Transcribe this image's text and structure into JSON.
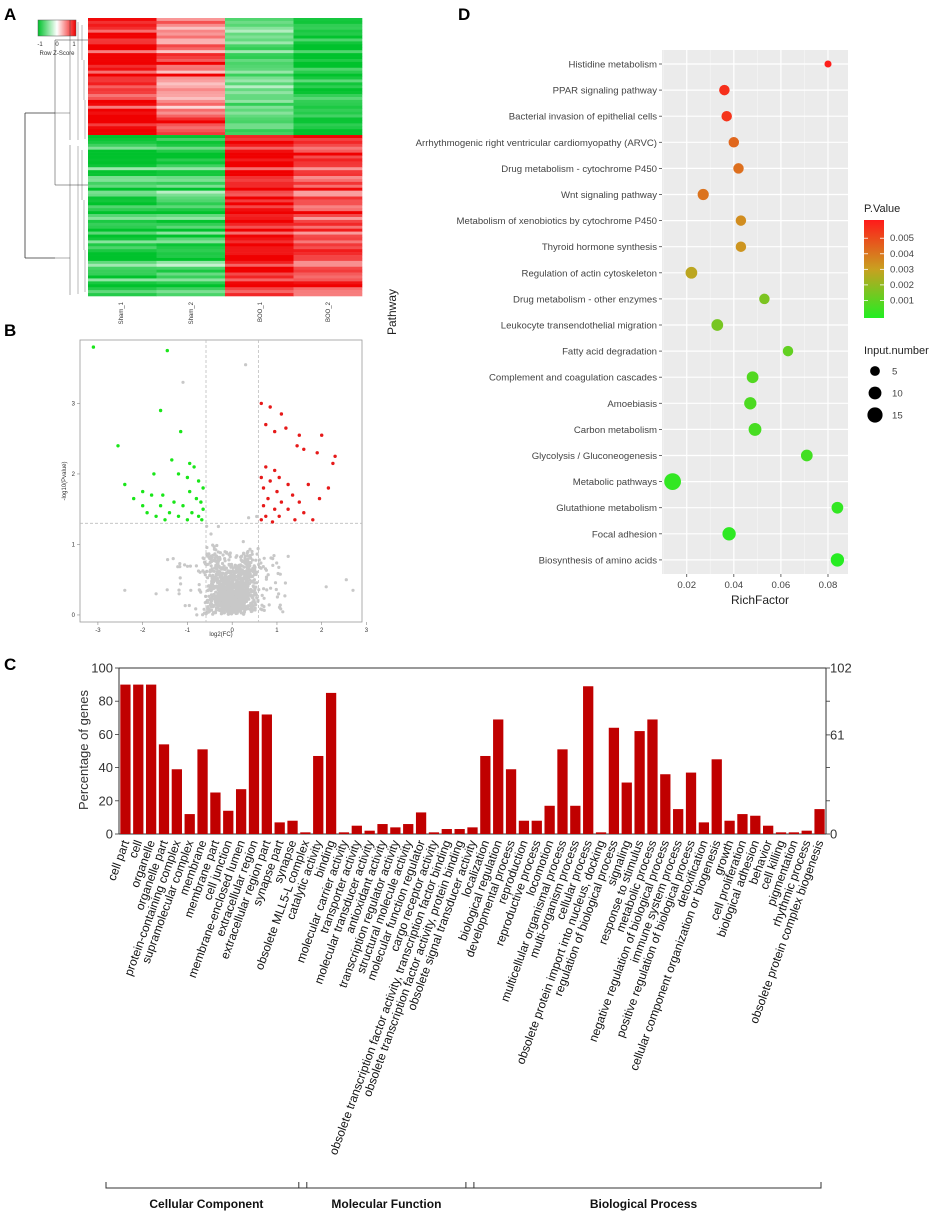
{
  "panels": {
    "a": "A",
    "b": "B",
    "c": "C",
    "d": "D"
  },
  "chart_data": [
    {
      "type": "heatmap",
      "panel": "A",
      "columns": [
        "Sham_1",
        "Sham_2",
        "BOO_1",
        "BOO_2"
      ],
      "legend_title": "Row Z-Score",
      "legend_ticks": [
        "-1",
        "0",
        "1"
      ],
      "colors": {
        "low": "#00c22c",
        "mid": "#ffffff",
        "high": "#f00000"
      },
      "clusters": [
        {
          "name": "up_in_sham",
          "rows": 40,
          "means": [
            0.95,
            0.55,
            -0.6,
            -0.9
          ]
        },
        {
          "name": "up_in_boo",
          "rows": 55,
          "means": [
            -0.8,
            -0.7,
            0.9,
            0.7
          ]
        }
      ]
    },
    {
      "type": "scatter",
      "panel": "B",
      "xlabel": "log2(FC)",
      "ylabel": "-log10(Pvalue)",
      "x_ticks": [
        "-3",
        "-2",
        "-1",
        "0",
        "1",
        "2",
        "3"
      ],
      "y_ticks": [
        "0",
        "1",
        "2",
        "3"
      ],
      "xlim": [
        -3.4,
        2.9
      ],
      "ylim": [
        -0.1,
        3.9
      ],
      "thresholds": {
        "x": [
          -0.585,
          0.585
        ],
        "y": 1.3
      },
      "colors": {
        "down": "#19e619",
        "up": "#e61919",
        "ns": "#c8c8c8"
      },
      "down": [
        [
          -3.1,
          3.8
        ],
        [
          -1.45,
          3.75
        ],
        [
          -1.6,
          2.9
        ],
        [
          -1.15,
          2.6
        ],
        [
          -2.55,
          2.4
        ],
        [
          -1.35,
          2.2
        ],
        [
          -0.95,
          2.15
        ],
        [
          -1.75,
          2.0
        ],
        [
          -1.2,
          2.0
        ],
        [
          -0.85,
          2.1
        ],
        [
          -1.0,
          1.95
        ],
        [
          -2.4,
          1.85
        ],
        [
          -0.75,
          1.9
        ],
        [
          -0.65,
          1.8
        ],
        [
          -2.0,
          1.75
        ],
        [
          -1.8,
          1.7
        ],
        [
          -1.55,
          1.7
        ],
        [
          -0.95,
          1.75
        ],
        [
          -2.2,
          1.65
        ],
        [
          -1.3,
          1.6
        ],
        [
          -0.8,
          1.65
        ],
        [
          -2.0,
          1.55
        ],
        [
          -1.6,
          1.55
        ],
        [
          -1.1,
          1.55
        ],
        [
          -0.7,
          1.6
        ],
        [
          -1.9,
          1.45
        ],
        [
          -1.4,
          1.45
        ],
        [
          -0.9,
          1.45
        ],
        [
          -0.65,
          1.5
        ],
        [
          -1.7,
          1.4
        ],
        [
          -1.2,
          1.4
        ],
        [
          -0.75,
          1.4
        ],
        [
          -1.5,
          1.35
        ],
        [
          -1.0,
          1.35
        ],
        [
          -0.68,
          1.35
        ]
      ],
      "up": [
        [
          0.65,
          3.0
        ],
        [
          0.85,
          2.95
        ],
        [
          1.1,
          2.85
        ],
        [
          0.75,
          2.7
        ],
        [
          1.2,
          2.65
        ],
        [
          0.95,
          2.6
        ],
        [
          1.5,
          2.55
        ],
        [
          2.0,
          2.55
        ],
        [
          1.45,
          2.4
        ],
        [
          1.6,
          2.35
        ],
        [
          1.9,
          2.3
        ],
        [
          2.3,
          2.25
        ],
        [
          2.25,
          2.15
        ],
        [
          0.75,
          2.1
        ],
        [
          0.95,
          2.05
        ],
        [
          0.65,
          1.95
        ],
        [
          1.05,
          1.95
        ],
        [
          0.85,
          1.9
        ],
        [
          1.25,
          1.85
        ],
        [
          1.7,
          1.85
        ],
        [
          0.7,
          1.8
        ],
        [
          1.0,
          1.75
        ],
        [
          1.35,
          1.7
        ],
        [
          2.15,
          1.8
        ],
        [
          0.8,
          1.65
        ],
        [
          1.1,
          1.6
        ],
        [
          1.5,
          1.6
        ],
        [
          1.95,
          1.65
        ],
        [
          0.7,
          1.55
        ],
        [
          0.95,
          1.5
        ],
        [
          1.25,
          1.5
        ],
        [
          1.6,
          1.45
        ],
        [
          0.75,
          1.4
        ],
        [
          1.05,
          1.4
        ],
        [
          1.4,
          1.35
        ],
        [
          1.8,
          1.35
        ],
        [
          0.65,
          1.35
        ],
        [
          0.9,
          1.32
        ]
      ]
    },
    {
      "type": "bar",
      "panel": "C",
      "ylabel": "Percentage of genes",
      "ylim": [
        0,
        100
      ],
      "y_ticks": [
        "0",
        "20",
        "40",
        "60",
        "80",
        "100"
      ],
      "right_ticks": [
        "0",
        "61",
        "102"
      ],
      "color": "#c00000",
      "categories": [
        "cell part",
        "cell",
        "organelle",
        "organelle part",
        "protein-containing complex",
        "supramolecular complex",
        "membrane",
        "membrane part",
        "cell junction",
        "membrane-enclosed lumen",
        "extracellular region",
        "extracellular region part",
        "synapse part",
        "synapse",
        "obsolete MLL5-L complex",
        "catalytic activity",
        "binding",
        "molecular carrier activity",
        "transporter activity",
        "molecular transducer activity",
        "antioxidant activity",
        "transcription regulator activity",
        "structural molecule activity",
        "molecular function regulator",
        "cargo receptor activity",
        "obsolete transcription factor activity, transcription factor binding",
        "obsolete transcription factor activity, protein binding",
        "obsolete signal transducer activity",
        "localization",
        "biological regulation",
        "developmental process",
        "reproduction",
        "reproductive process",
        "locomotion",
        "multicellular organismal process",
        "multi-organism process",
        "cellular process",
        "obsolete protein import into nucleus, docking",
        "regulation of biological process",
        "signaling",
        "response to stimulus",
        "metabolic process",
        "negative regulation of biological process",
        "immune system process",
        "positive regulation of biological process",
        "detoxification",
        "cellular component organization or biogenesis",
        "growth",
        "cell proliferation",
        "biological adhesion",
        "behavior",
        "cell killing",
        "pigmentation",
        "rhythmic process",
        "obsolete protein complex biogenesis"
      ],
      "values": [
        90,
        90,
        90,
        54,
        39,
        12,
        51,
        25,
        14,
        27,
        74,
        72,
        7,
        8,
        1,
        47,
        85,
        1,
        5,
        2,
        6,
        4,
        6,
        13,
        1,
        3,
        3,
        4,
        47,
        69,
        39,
        8,
        8,
        17,
        51,
        17,
        89,
        1,
        64,
        31,
        62,
        69,
        36,
        15,
        37,
        7,
        45,
        8,
        12,
        11,
        5,
        1,
        1,
        2,
        15
      ],
      "groups": [
        {
          "name": "Cellular Component",
          "start": 0,
          "end": 14
        },
        {
          "name": "Molecular Function",
          "start": 15,
          "end": 27
        },
        {
          "name": "Biological Process",
          "start": 28,
          "end": 54
        }
      ]
    },
    {
      "type": "scatter",
      "panel": "D",
      "xlabel": "RichFactor",
      "ylabel": "Pathway",
      "x_ticks": [
        "0.02",
        "0.04",
        "0.06",
        "0.08"
      ],
      "xlim": [
        0.0095,
        0.0885
      ],
      "pathways": [
        "Histidine metabolism",
        "PPAR signaling pathway",
        "Bacterial invasion of epithelial cells",
        "Arrhythmogenic right ventricular cardiomyopathy (ARVC)",
        "Drug metabolism - cytochrome P450",
        "Wnt signaling pathway",
        "Metabolism of xenobiotics by cytochrome P450",
        "Thyroid hormone synthesis",
        "Regulation of actin cytoskeleton",
        "Drug metabolism - other enzymes",
        "Leukocyte transendothelial migration",
        "Fatty acid degradation",
        "Complement and coagulation cascades",
        "Amoebiasis",
        "Carbon metabolism",
        "Glycolysis / Gluconeogenesis",
        "Metabolic pathways",
        "Glutathione metabolism",
        "Focal adhesion",
        "Biosynthesis of amino acids"
      ],
      "rich_factor": [
        0.08,
        0.036,
        0.037,
        0.04,
        0.042,
        0.027,
        0.043,
        0.043,
        0.022,
        0.053,
        0.033,
        0.063,
        0.048,
        0.047,
        0.049,
        0.071,
        0.014,
        0.084,
        0.038,
        0.084
      ],
      "p_value": [
        0.0062,
        0.0058,
        0.0057,
        0.0045,
        0.0043,
        0.0042,
        0.0036,
        0.0034,
        0.0029,
        0.0017,
        0.0016,
        0.0012,
        0.0009,
        0.0008,
        0.0007,
        0.0006,
        0.0003,
        0.0003,
        0.0002,
        0.0001
      ],
      "input_number": [
        2,
        6,
        6,
        6,
        6,
        7,
        6,
        6,
        8,
        6,
        8,
        6,
        8,
        9,
        10,
        8,
        19,
        8,
        11,
        11
      ],
      "color_legend": {
        "title": "P.Value",
        "ticks": [
          "0.005",
          "0.004",
          "0.003",
          "0.002",
          "0.001"
        ],
        "range": [
          0.0,
          0.0063
        ]
      },
      "size_legend": {
        "title": "Input.number",
        "labels": [
          "5",
          "10",
          "15"
        ]
      }
    }
  ]
}
